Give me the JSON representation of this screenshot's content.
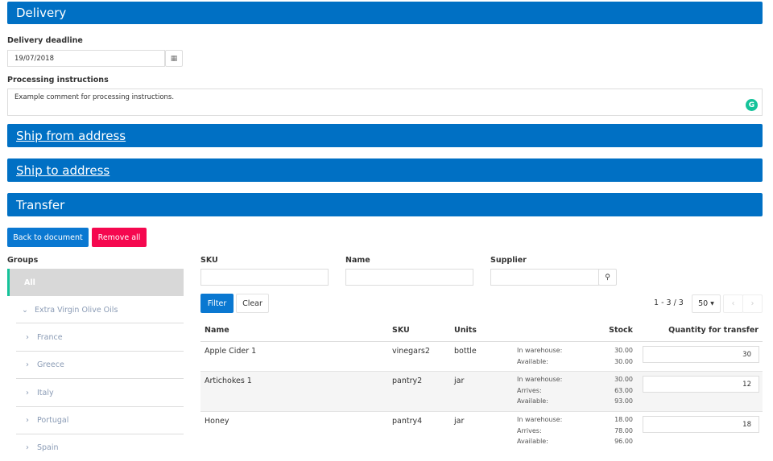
{
  "sections": {
    "delivery": "Delivery",
    "ship_from": "Ship from address",
    "ship_to": "Ship to address",
    "transfer": "Transfer"
  },
  "delivery": {
    "deadline_label": "Delivery deadline",
    "deadline_value": "19/07/2018",
    "instructions_label": "Processing instructions",
    "instructions_value": "Example comment for processing instructions."
  },
  "actions": {
    "back": "Back to document",
    "remove_all": "Remove all"
  },
  "groups": {
    "label": "Groups",
    "all": "All",
    "parent": "Extra Virgin Olive Oils",
    "children": [
      "France",
      "Greece",
      "Italy",
      "Portugal",
      "Spain"
    ]
  },
  "filters": {
    "sku_label": "SKU",
    "name_label": "Name",
    "supplier_label": "Supplier",
    "filter": "Filter",
    "clear": "Clear"
  },
  "pagination": {
    "range": "1 - 3 / 3",
    "per_page": "50"
  },
  "table": {
    "headers": {
      "name": "Name",
      "sku": "SKU",
      "units": "Units",
      "stock": "Stock",
      "qty": "Quantity for transfer"
    },
    "rows": [
      {
        "name": "Apple Cider 1",
        "sku": "vinegars2",
        "units": "bottle",
        "stock_labels": "In warehouse:\nAvailable:",
        "stock_values": "30.00\n30.00",
        "qty": "30"
      },
      {
        "name": "Artichokes 1",
        "sku": "pantry2",
        "units": "jar",
        "stock_labels": "In warehouse:\nArrives:\nAvailable:",
        "stock_values": "30.00\n63.00\n93.00",
        "qty": "12"
      },
      {
        "name": "Honey",
        "sku": "pantry4",
        "units": "jar",
        "stock_labels": "In warehouse:\nArrives:\nAvailable:",
        "stock_values": "18.00\n78.00\n96.00",
        "qty": "18"
      }
    ]
  },
  "colors": {
    "primary": "#0070c4",
    "danger": "#f5084f",
    "grammarly": "#15c39a"
  }
}
